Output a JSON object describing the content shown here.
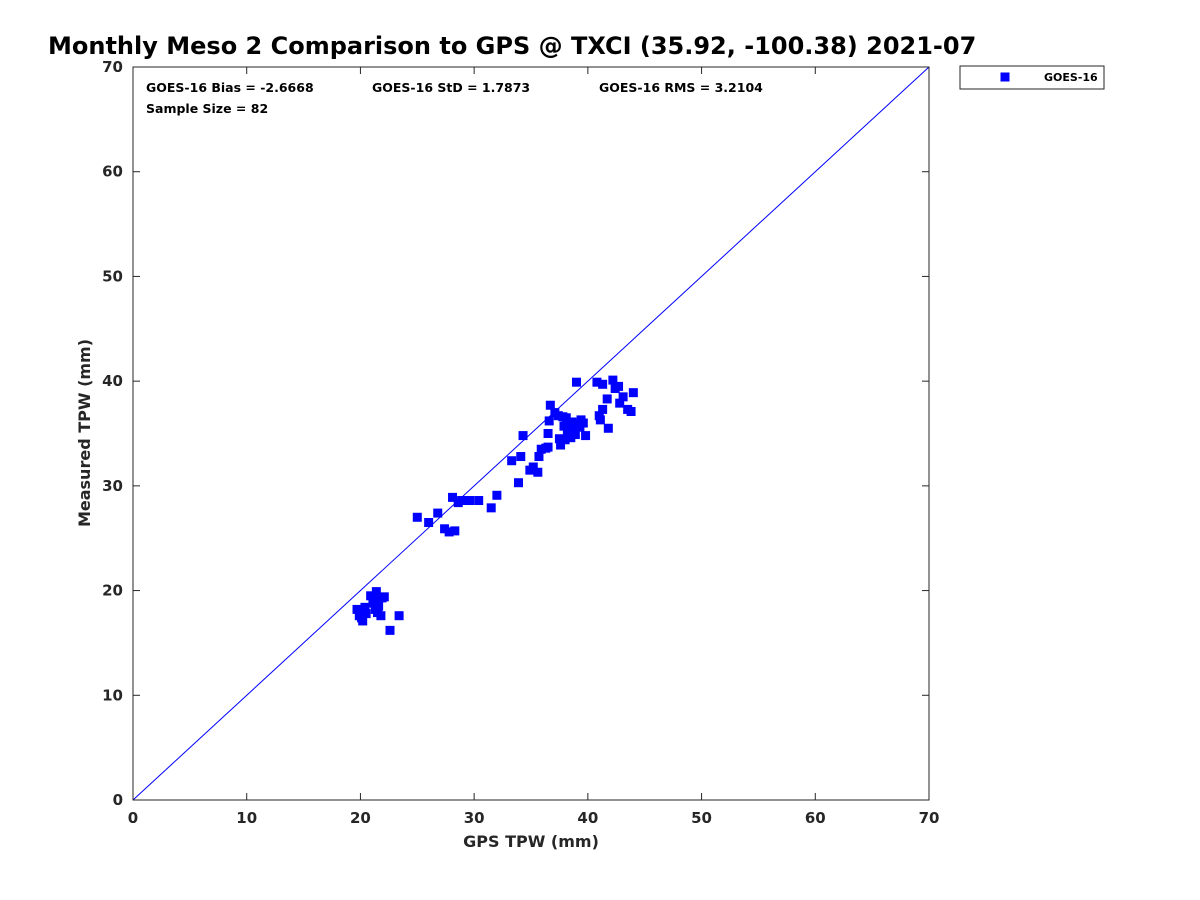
{
  "chart_data": {
    "type": "scatter",
    "title": "Monthly Meso 2 Comparison to GPS @ TXCI (35.92, -100.38) 2021-07",
    "xlabel": "GPS TPW (mm)",
    "ylabel": "Measured TPW (mm)",
    "xlim": [
      0,
      70
    ],
    "ylim": [
      0,
      70
    ],
    "xticks": [
      "0",
      "10",
      "20",
      "30",
      "40",
      "50",
      "60",
      "70"
    ],
    "yticks": [
      "0",
      "10",
      "20",
      "30",
      "40",
      "50",
      "60",
      "70"
    ],
    "grid": false,
    "legend_position": "top-right, outside plot",
    "reference_line": {
      "from": [
        0,
        0
      ],
      "to": [
        70,
        70
      ],
      "color": "#0000ff"
    },
    "annotations": {
      "bias": "GOES-16 Bias = -2.6668",
      "std": "GOES-16 StD = 1.7873",
      "rms": "GOES-16 RMS = 3.2104",
      "sample": "Sample Size = 82"
    },
    "series": [
      {
        "name": "GOES-16",
        "color": "#0000ff",
        "marker": "square",
        "points": [
          [
            19.7,
            18.2
          ],
          [
            19.9,
            17.6
          ],
          [
            20.1,
            17.4
          ],
          [
            20.2,
            17.1
          ],
          [
            20.3,
            18.0
          ],
          [
            20.4,
            18.4
          ],
          [
            20.5,
            17.8
          ],
          [
            20.9,
            19.5
          ],
          [
            21.1,
            18.8
          ],
          [
            21.2,
            19.2
          ],
          [
            21.3,
            18.2
          ],
          [
            21.4,
            19.9
          ],
          [
            21.5,
            17.9
          ],
          [
            21.6,
            18.5
          ],
          [
            21.8,
            17.6
          ],
          [
            21.9,
            19.3
          ],
          [
            22.1,
            19.4
          ],
          [
            22.6,
            16.2
          ],
          [
            23.4,
            17.6
          ],
          [
            25.0,
            27.0
          ],
          [
            26.0,
            26.5
          ],
          [
            26.8,
            27.4
          ],
          [
            27.4,
            25.9
          ],
          [
            27.8,
            25.6
          ],
          [
            28.1,
            28.9
          ],
          [
            28.3,
            25.7
          ],
          [
            28.6,
            28.4
          ],
          [
            28.9,
            28.6
          ],
          [
            29.6,
            28.6
          ],
          [
            30.4,
            28.6
          ],
          [
            31.5,
            27.9
          ],
          [
            32.0,
            29.1
          ],
          [
            33.3,
            32.4
          ],
          [
            33.9,
            30.3
          ],
          [
            34.1,
            32.8
          ],
          [
            34.3,
            34.8
          ],
          [
            34.9,
            31.5
          ],
          [
            35.2,
            31.8
          ],
          [
            35.6,
            31.3
          ],
          [
            35.7,
            32.8
          ],
          [
            35.9,
            33.5
          ],
          [
            36.3,
            33.6
          ],
          [
            36.5,
            33.7
          ],
          [
            36.5,
            35.0
          ],
          [
            36.6,
            36.2
          ],
          [
            36.7,
            37.7
          ],
          [
            37.1,
            37.0
          ],
          [
            37.4,
            36.7
          ],
          [
            37.5,
            34.5
          ],
          [
            37.6,
            33.9
          ],
          [
            37.9,
            35.7
          ],
          [
            38.0,
            34.4
          ],
          [
            38.1,
            36.5
          ],
          [
            38.2,
            35.1
          ],
          [
            38.3,
            35.9
          ],
          [
            38.5,
            34.6
          ],
          [
            38.6,
            36.1
          ],
          [
            38.7,
            35.4
          ],
          [
            38.9,
            34.9
          ],
          [
            39.0,
            39.9
          ],
          [
            39.1,
            35.9
          ],
          [
            39.3,
            35.6
          ],
          [
            39.4,
            36.3
          ],
          [
            39.6,
            36.0
          ],
          [
            39.8,
            34.8
          ],
          [
            40.8,
            39.9
          ],
          [
            41.0,
            36.7
          ],
          [
            41.1,
            36.3
          ],
          [
            41.3,
            39.7
          ],
          [
            41.3,
            37.3
          ],
          [
            41.7,
            38.3
          ],
          [
            41.8,
            35.5
          ],
          [
            42.2,
            40.1
          ],
          [
            42.4,
            39.3
          ],
          [
            42.7,
            39.5
          ],
          [
            42.8,
            37.9
          ],
          [
            43.1,
            38.5
          ],
          [
            43.5,
            37.3
          ],
          [
            43.8,
            37.1
          ],
          [
            44.0,
            38.9
          ],
          [
            38.4,
            35.2
          ],
          [
            37.8,
            36.6
          ]
        ]
      }
    ]
  }
}
